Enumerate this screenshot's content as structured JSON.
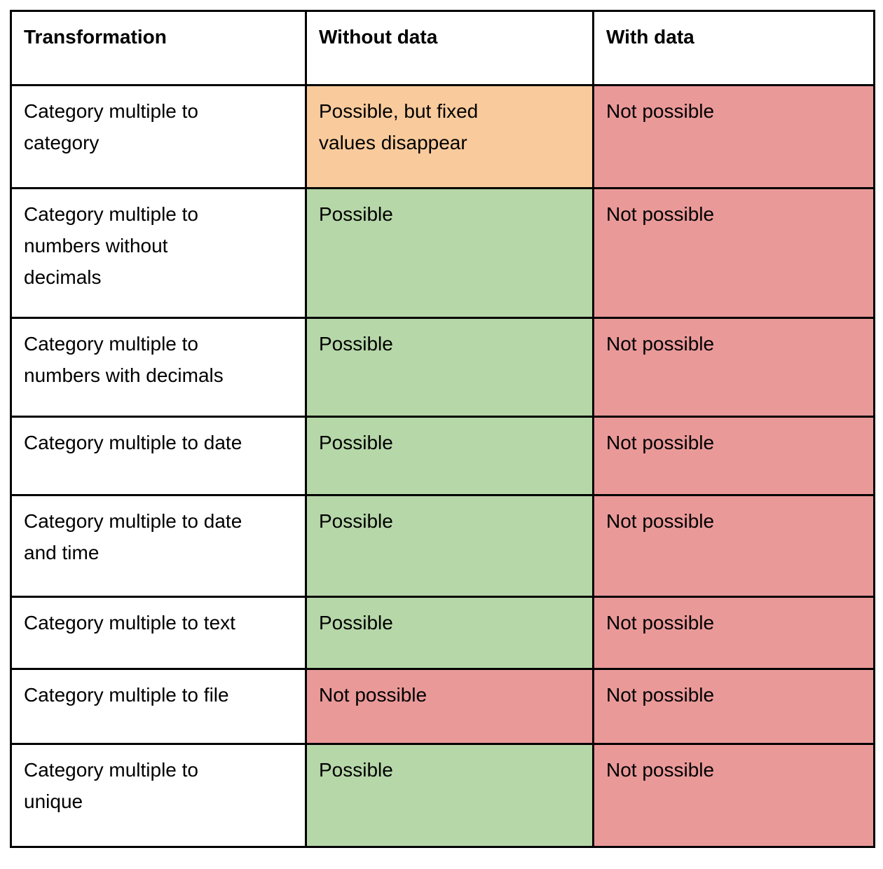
{
  "palette": {
    "possible_green": "#b6d7a8",
    "not_possible_red": "#ea9999",
    "caution_orange": "#f9cb9c",
    "plain_white": "#ffffff",
    "border_black": "#000000",
    "text_black": "#000000"
  },
  "table": {
    "headers": [
      "Transformation",
      "Without data",
      "With data"
    ],
    "rows": [
      {
        "cells": [
          {
            "text": "Category multiple to\ncategory",
            "bg": "#ffffff"
          },
          {
            "text": "Possible, but fixed\nvalues disappear",
            "bg": "#f9cb9c"
          },
          {
            "text": "Not possible",
            "bg": "#ea9999"
          }
        ]
      },
      {
        "cells": [
          {
            "text": "Category multiple to\nnumbers without\ndecimals",
            "bg": "#ffffff"
          },
          {
            "text": "Possible",
            "bg": "#b6d7a8"
          },
          {
            "text": "Not possible",
            "bg": "#ea9999"
          }
        ]
      },
      {
        "cells": [
          {
            "text": "Category multiple to\nnumbers with decimals",
            "bg": "#ffffff"
          },
          {
            "text": "Possible",
            "bg": "#b6d7a8"
          },
          {
            "text": "Not possible",
            "bg": "#ea9999"
          }
        ]
      },
      {
        "cells": [
          {
            "text": "Category multiple to date",
            "bg": "#ffffff"
          },
          {
            "text": "Possible",
            "bg": "#b6d7a8"
          },
          {
            "text": "Not possible",
            "bg": "#ea9999"
          }
        ]
      },
      {
        "cells": [
          {
            "text": "Category multiple to date\nand time",
            "bg": "#ffffff"
          },
          {
            "text": "Possible",
            "bg": "#b6d7a8"
          },
          {
            "text": "Not possible",
            "bg": "#ea9999"
          }
        ]
      },
      {
        "cells": [
          {
            "text": "Category multiple to text",
            "bg": "#ffffff"
          },
          {
            "text": "Possible",
            "bg": "#b6d7a8"
          },
          {
            "text": "Not possible",
            "bg": "#ea9999"
          }
        ]
      },
      {
        "cells": [
          {
            "text": "Category multiple to file",
            "bg": "#ffffff"
          },
          {
            "text": "Not possible",
            "bg": "#ea9999"
          },
          {
            "text": "Not possible",
            "bg": "#ea9999"
          }
        ]
      },
      {
        "cells": [
          {
            "text": "Category multiple to\nunique",
            "bg": "#ffffff"
          },
          {
            "text": "Possible",
            "bg": "#b6d7a8"
          },
          {
            "text": "Not possible",
            "bg": "#ea9999"
          }
        ]
      }
    ]
  }
}
